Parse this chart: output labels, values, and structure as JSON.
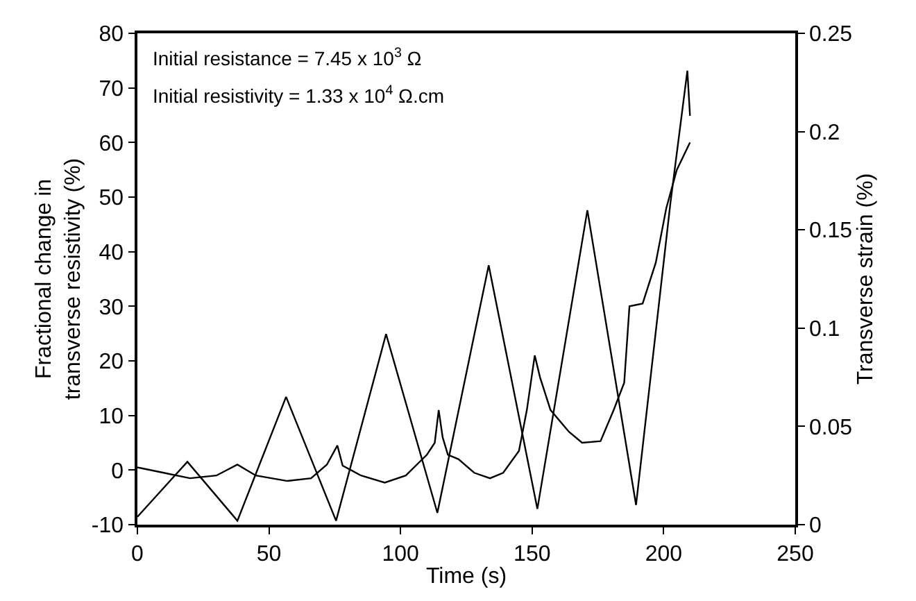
{
  "chart_data": {
    "type": "line",
    "xlabel": "Time (s)",
    "ylabel": "Fractional change in\ntransverse resistivity (%)",
    "y2label": "Transverse strain (%)",
    "annotations": [
      "Initial resistance = 7.45 x 10$^{3}$ Ω",
      "Initial resistivity = 1.33 x 10$^{4}$ Ω.cm"
    ],
    "xlim": [
      0,
      250
    ],
    "xticks": [
      0,
      50,
      100,
      150,
      200,
      250
    ],
    "ylim": [
      -10,
      80
    ],
    "yticks": [
      -10,
      0,
      10,
      20,
      30,
      40,
      50,
      60,
      70,
      80
    ],
    "y2lim": [
      0,
      0.25
    ],
    "y2ticks": [
      0,
      0.05,
      0.1,
      0.15,
      0.2,
      0.25
    ],
    "marker": "none",
    "line_style": "solid",
    "series": [
      {
        "color": "#000000",
        "x": [
          0,
          10,
          20,
          30,
          38,
          45,
          57,
          66,
          72,
          76,
          78,
          85,
          94,
          102,
          110,
          113,
          114.5,
          116,
          118,
          122,
          128,
          134,
          139,
          145,
          148,
          151,
          153,
          157,
          164,
          169,
          176,
          181,
          185,
          187,
          192,
          197,
          201,
          205,
          208,
          210
        ],
        "values": [
          0.5,
          -0.5,
          -1.5,
          -1,
          1,
          -1,
          -2,
          -1.5,
          1,
          4.5,
          0.8,
          -1,
          -2.3,
          -1,
          2.8,
          5,
          11,
          6,
          2.8,
          2,
          -0.5,
          -1.5,
          -0.5,
          3.5,
          11,
          21,
          17,
          11,
          7,
          5,
          5.3,
          11,
          16,
          30,
          30.5,
          38,
          48,
          55,
          58,
          60
        ]
      },
      {
        "color": "#000000",
        "axis": "y2",
        "x": [
          0,
          19,
          38,
          56.5,
          75.5,
          94.5,
          114,
          133.5,
          152,
          171,
          189.5,
          202.5,
          209,
          210
        ],
        "values": [
          0.004,
          0.032,
          0.002,
          0.065,
          0.002,
          0.097,
          0.006,
          0.132,
          0.008,
          0.16,
          0.01,
          0.163,
          0.231,
          0.208
        ]
      }
    ]
  }
}
